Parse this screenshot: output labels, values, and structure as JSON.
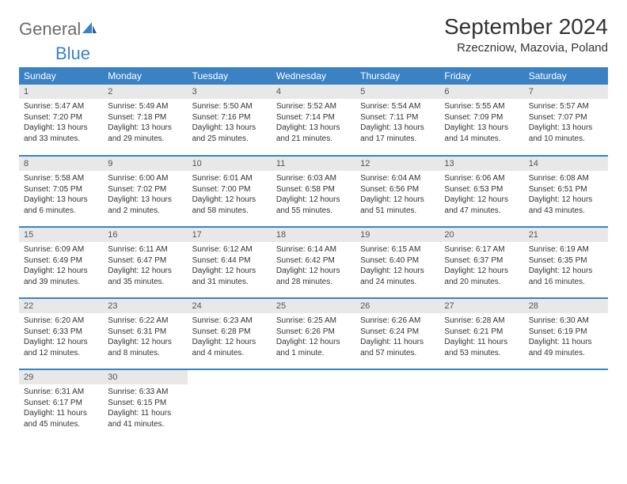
{
  "logo": {
    "text1": "General",
    "text2": "Blue"
  },
  "title": "September 2024",
  "location": "Rzeczniow, Mazovia, Poland",
  "colors": {
    "header_bg": "#3b82c4",
    "header_text": "#ffffff",
    "daynum_bg": "#e8e8e8",
    "border": "#3b82c4",
    "body_text": "#333333",
    "logo_gray": "#6b6b6b",
    "logo_blue": "#3b82c4"
  },
  "weekdays": [
    "Sunday",
    "Monday",
    "Tuesday",
    "Wednesday",
    "Thursday",
    "Friday",
    "Saturday"
  ],
  "weeks": [
    [
      {
        "n": "1",
        "sr": "Sunrise: 5:47 AM",
        "ss": "Sunset: 7:20 PM",
        "d1": "Daylight: 13 hours",
        "d2": "and 33 minutes."
      },
      {
        "n": "2",
        "sr": "Sunrise: 5:49 AM",
        "ss": "Sunset: 7:18 PM",
        "d1": "Daylight: 13 hours",
        "d2": "and 29 minutes."
      },
      {
        "n": "3",
        "sr": "Sunrise: 5:50 AM",
        "ss": "Sunset: 7:16 PM",
        "d1": "Daylight: 13 hours",
        "d2": "and 25 minutes."
      },
      {
        "n": "4",
        "sr": "Sunrise: 5:52 AM",
        "ss": "Sunset: 7:14 PM",
        "d1": "Daylight: 13 hours",
        "d2": "and 21 minutes."
      },
      {
        "n": "5",
        "sr": "Sunrise: 5:54 AM",
        "ss": "Sunset: 7:11 PM",
        "d1": "Daylight: 13 hours",
        "d2": "and 17 minutes."
      },
      {
        "n": "6",
        "sr": "Sunrise: 5:55 AM",
        "ss": "Sunset: 7:09 PM",
        "d1": "Daylight: 13 hours",
        "d2": "and 14 minutes."
      },
      {
        "n": "7",
        "sr": "Sunrise: 5:57 AM",
        "ss": "Sunset: 7:07 PM",
        "d1": "Daylight: 13 hours",
        "d2": "and 10 minutes."
      }
    ],
    [
      {
        "n": "8",
        "sr": "Sunrise: 5:58 AM",
        "ss": "Sunset: 7:05 PM",
        "d1": "Daylight: 13 hours",
        "d2": "and 6 minutes."
      },
      {
        "n": "9",
        "sr": "Sunrise: 6:00 AM",
        "ss": "Sunset: 7:02 PM",
        "d1": "Daylight: 13 hours",
        "d2": "and 2 minutes."
      },
      {
        "n": "10",
        "sr": "Sunrise: 6:01 AM",
        "ss": "Sunset: 7:00 PM",
        "d1": "Daylight: 12 hours",
        "d2": "and 58 minutes."
      },
      {
        "n": "11",
        "sr": "Sunrise: 6:03 AM",
        "ss": "Sunset: 6:58 PM",
        "d1": "Daylight: 12 hours",
        "d2": "and 55 minutes."
      },
      {
        "n": "12",
        "sr": "Sunrise: 6:04 AM",
        "ss": "Sunset: 6:56 PM",
        "d1": "Daylight: 12 hours",
        "d2": "and 51 minutes."
      },
      {
        "n": "13",
        "sr": "Sunrise: 6:06 AM",
        "ss": "Sunset: 6:53 PM",
        "d1": "Daylight: 12 hours",
        "d2": "and 47 minutes."
      },
      {
        "n": "14",
        "sr": "Sunrise: 6:08 AM",
        "ss": "Sunset: 6:51 PM",
        "d1": "Daylight: 12 hours",
        "d2": "and 43 minutes."
      }
    ],
    [
      {
        "n": "15",
        "sr": "Sunrise: 6:09 AM",
        "ss": "Sunset: 6:49 PM",
        "d1": "Daylight: 12 hours",
        "d2": "and 39 minutes."
      },
      {
        "n": "16",
        "sr": "Sunrise: 6:11 AM",
        "ss": "Sunset: 6:47 PM",
        "d1": "Daylight: 12 hours",
        "d2": "and 35 minutes."
      },
      {
        "n": "17",
        "sr": "Sunrise: 6:12 AM",
        "ss": "Sunset: 6:44 PM",
        "d1": "Daylight: 12 hours",
        "d2": "and 31 minutes."
      },
      {
        "n": "18",
        "sr": "Sunrise: 6:14 AM",
        "ss": "Sunset: 6:42 PM",
        "d1": "Daylight: 12 hours",
        "d2": "and 28 minutes."
      },
      {
        "n": "19",
        "sr": "Sunrise: 6:15 AM",
        "ss": "Sunset: 6:40 PM",
        "d1": "Daylight: 12 hours",
        "d2": "and 24 minutes."
      },
      {
        "n": "20",
        "sr": "Sunrise: 6:17 AM",
        "ss": "Sunset: 6:37 PM",
        "d1": "Daylight: 12 hours",
        "d2": "and 20 minutes."
      },
      {
        "n": "21",
        "sr": "Sunrise: 6:19 AM",
        "ss": "Sunset: 6:35 PM",
        "d1": "Daylight: 12 hours",
        "d2": "and 16 minutes."
      }
    ],
    [
      {
        "n": "22",
        "sr": "Sunrise: 6:20 AM",
        "ss": "Sunset: 6:33 PM",
        "d1": "Daylight: 12 hours",
        "d2": "and 12 minutes."
      },
      {
        "n": "23",
        "sr": "Sunrise: 6:22 AM",
        "ss": "Sunset: 6:31 PM",
        "d1": "Daylight: 12 hours",
        "d2": "and 8 minutes."
      },
      {
        "n": "24",
        "sr": "Sunrise: 6:23 AM",
        "ss": "Sunset: 6:28 PM",
        "d1": "Daylight: 12 hours",
        "d2": "and 4 minutes."
      },
      {
        "n": "25",
        "sr": "Sunrise: 6:25 AM",
        "ss": "Sunset: 6:26 PM",
        "d1": "Daylight: 12 hours",
        "d2": "and 1 minute."
      },
      {
        "n": "26",
        "sr": "Sunrise: 6:26 AM",
        "ss": "Sunset: 6:24 PM",
        "d1": "Daylight: 11 hours",
        "d2": "and 57 minutes."
      },
      {
        "n": "27",
        "sr": "Sunrise: 6:28 AM",
        "ss": "Sunset: 6:21 PM",
        "d1": "Daylight: 11 hours",
        "d2": "and 53 minutes."
      },
      {
        "n": "28",
        "sr": "Sunrise: 6:30 AM",
        "ss": "Sunset: 6:19 PM",
        "d1": "Daylight: 11 hours",
        "d2": "and 49 minutes."
      }
    ],
    [
      {
        "n": "29",
        "sr": "Sunrise: 6:31 AM",
        "ss": "Sunset: 6:17 PM",
        "d1": "Daylight: 11 hours",
        "d2": "and 45 minutes."
      },
      {
        "n": "30",
        "sr": "Sunrise: 6:33 AM",
        "ss": "Sunset: 6:15 PM",
        "d1": "Daylight: 11 hours",
        "d2": "and 41 minutes."
      },
      null,
      null,
      null,
      null,
      null
    ]
  ]
}
